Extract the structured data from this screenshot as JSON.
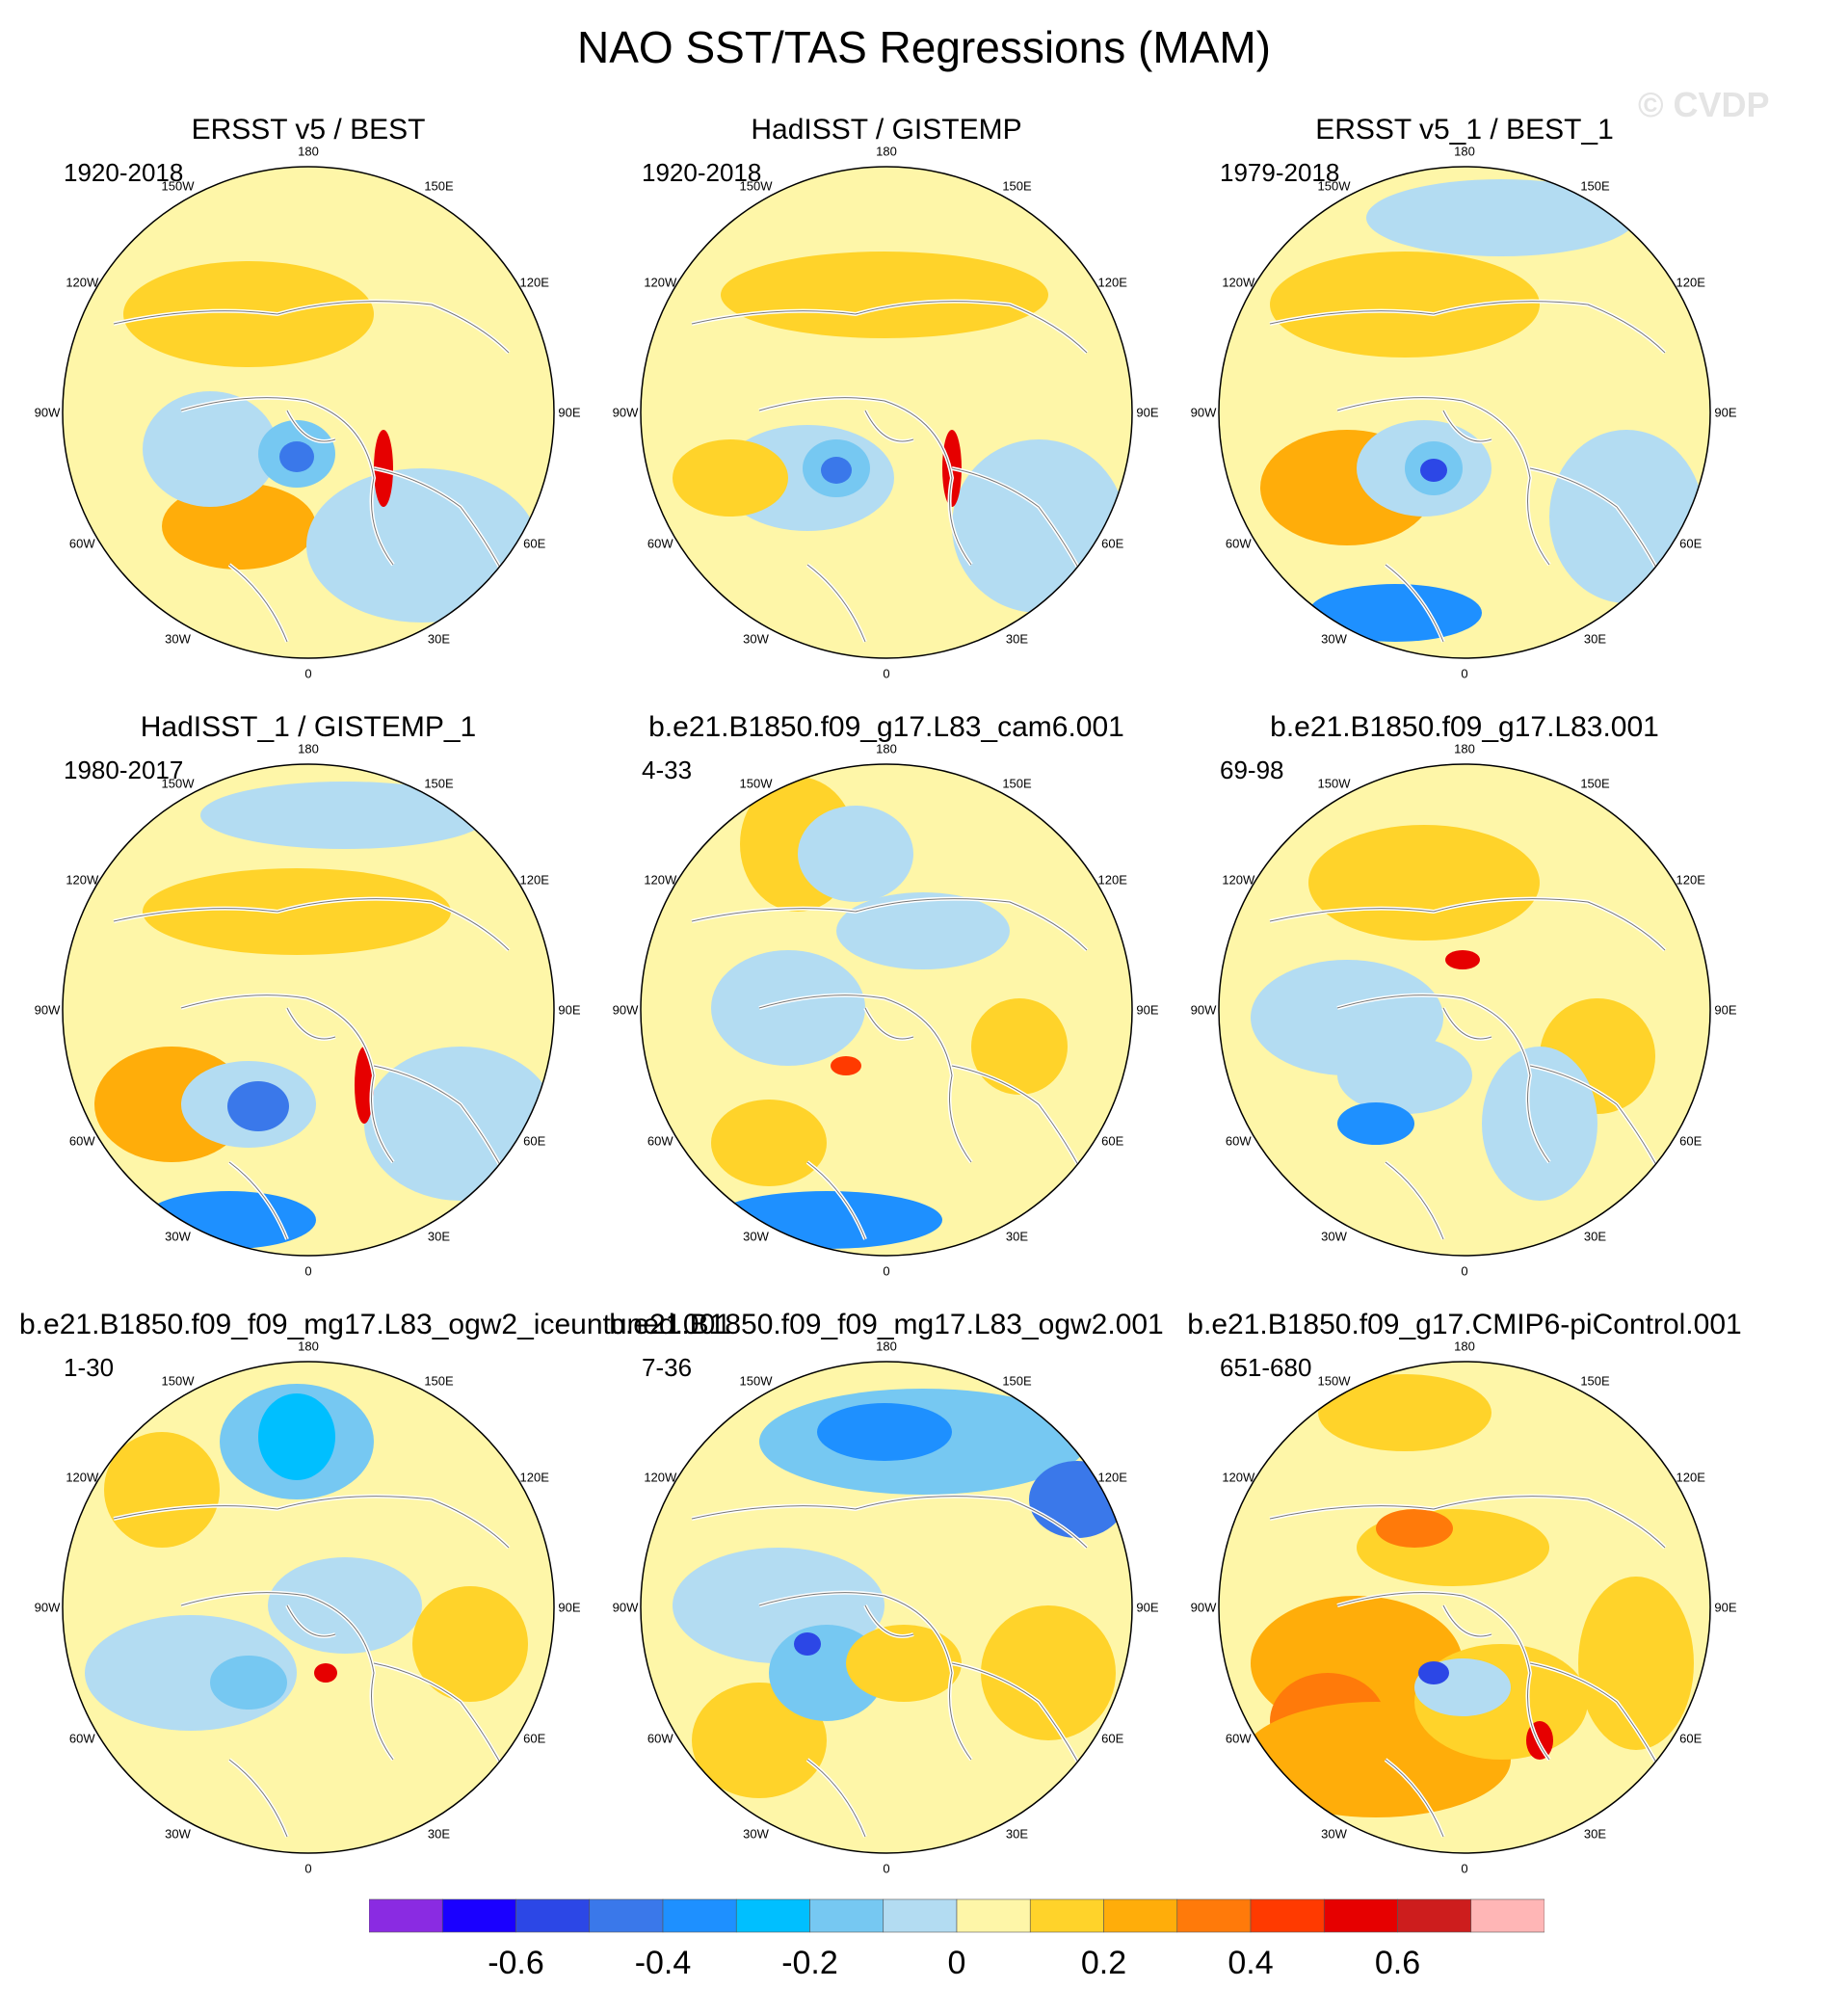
{
  "title": "NAO SST/TAS Regressions (MAM)",
  "watermark": "© CVDP",
  "lon_labels": [
    "180",
    "150E",
    "120E",
    "90E",
    "60E",
    "30E",
    "0",
    "30W",
    "60W",
    "90W",
    "120W",
    "150W"
  ],
  "panels": [
    {
      "title": "ERSST v5 / BEST",
      "period": "1920-2018"
    },
    {
      "title": "HadISST / GISTEMP",
      "period": "1920-2018"
    },
    {
      "title": "ERSST v5_1 / BEST_1",
      "period": "1979-2018"
    },
    {
      "title": "HadISST_1 / GISTEMP_1",
      "period": "1980-2017"
    },
    {
      "title": "b.e21.B1850.f09_g17.L83_cam6.001",
      "period": "4-33"
    },
    {
      "title": "b.e21.B1850.f09_g17.L83.001",
      "period": "69-98"
    },
    {
      "title": "b.e21.B1850.f09_f09_mg17.L83_ogw2_iceuntuned.001",
      "period": "1-30"
    },
    {
      "title": "b.e21.B1850.f09_f09_mg17.L83_ogw2.001",
      "period": "7-36"
    },
    {
      "title": "b.e21.B1850.f09_g17.CMIP6-piControl.001",
      "period": "651-680"
    }
  ],
  "colorbar": {
    "colors": [
      "#8a2be2",
      "#1a00ff",
      "#2c47e6",
      "#3a78ea",
      "#1e90ff",
      "#00bfff",
      "#76c8f2",
      "#b3dcf2",
      "#fef6a8",
      "#ffd32a",
      "#ffad0a",
      "#ff7a0a",
      "#ff3a00",
      "#e60000",
      "#cd1d1d",
      "#ffb6b6"
    ],
    "tick_labels": [
      "-0.6",
      "-0.4",
      "-0.2",
      "0",
      "0.2",
      "0.4",
      "0.6"
    ],
    "tick_values": [
      -0.6,
      -0.4,
      -0.2,
      0,
      0.2,
      0.4,
      0.6
    ],
    "min": -0.8,
    "max": 0.8
  },
  "map_colors": {
    "positive": "#fef6a8",
    "negative": "#b3dcf2",
    "coast": "#ffffff"
  }
}
